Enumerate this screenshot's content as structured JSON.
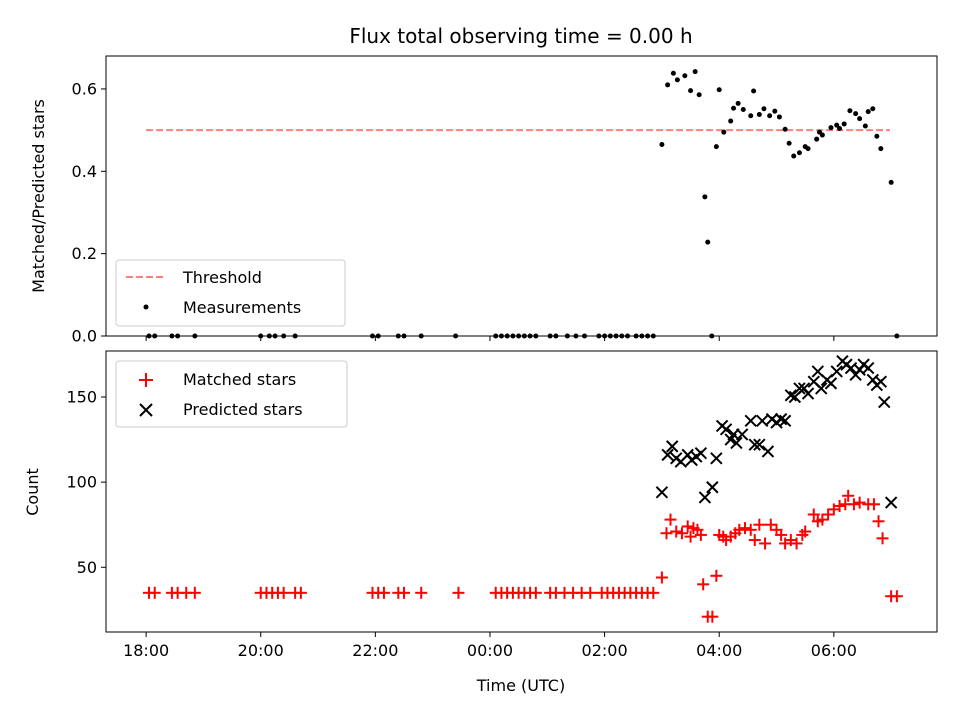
{
  "chart_data": [
    {
      "type": "scatter",
      "title": "Flux total observing time = 0.00 h",
      "xlabel": "",
      "ylabel": "Matched/Predicted stars",
      "xlim": [
        -6.7,
        7.8
      ],
      "ylim": [
        0.0,
        0.68
      ],
      "yticks": [
        0.0,
        0.2,
        0.4,
        0.6
      ],
      "ytick_labels": [
        "0.0",
        "0.2",
        "0.4",
        "0.6"
      ],
      "grid": false,
      "legend_position": "lower-left",
      "threshold": {
        "name": "Threshold",
        "y": 0.5,
        "x_range": [
          -6.0,
          6.98
        ],
        "color": "#ff7f7f"
      },
      "series": [
        {
          "name": "Measurements",
          "marker": "dot",
          "color": "#000000",
          "points": [
            [
              -5.95,
              0
            ],
            [
              -5.85,
              0
            ],
            [
              -5.55,
              0
            ],
            [
              -5.45,
              0
            ],
            [
              -5.15,
              0
            ],
            [
              -4.0,
              0
            ],
            [
              -3.85,
              0
            ],
            [
              -3.75,
              0
            ],
            [
              -3.6,
              0
            ],
            [
              -3.4,
              0
            ],
            [
              -2.05,
              0
            ],
            [
              -1.95,
              0
            ],
            [
              -1.6,
              0
            ],
            [
              -1.5,
              0
            ],
            [
              -1.2,
              0
            ],
            [
              -0.6,
              0
            ],
            [
              0.1,
              0
            ],
            [
              0.2,
              0
            ],
            [
              0.3,
              0
            ],
            [
              0.4,
              0
            ],
            [
              0.5,
              0
            ],
            [
              0.6,
              0
            ],
            [
              0.7,
              0
            ],
            [
              0.8,
              0
            ],
            [
              1.05,
              0
            ],
            [
              1.15,
              0
            ],
            [
              1.35,
              0
            ],
            [
              1.5,
              0
            ],
            [
              1.65,
              0
            ],
            [
              1.9,
              0
            ],
            [
              2.0,
              0
            ],
            [
              2.1,
              0
            ],
            [
              2.2,
              0
            ],
            [
              2.3,
              0
            ],
            [
              2.4,
              0
            ],
            [
              2.55,
              0
            ],
            [
              2.65,
              0
            ],
            [
              2.75,
              0
            ],
            [
              2.85,
              0
            ],
            [
              3.0,
              0.465
            ],
            [
              3.1,
              0.61
            ],
            [
              3.2,
              0.638
            ],
            [
              3.27,
              0.622
            ],
            [
              3.4,
              0.632
            ],
            [
              3.5,
              0.596
            ],
            [
              3.58,
              0.642
            ],
            [
              3.65,
              0.586
            ],
            [
              3.75,
              0.338
            ],
            [
              3.8,
              0.228
            ],
            [
              3.87,
              0.0
            ],
            [
              3.95,
              0.46
            ],
            [
              4.0,
              0.598
            ],
            [
              4.08,
              0.495
            ],
            [
              4.2,
              0.522
            ],
            [
              4.25,
              0.553
            ],
            [
              4.33,
              0.565
            ],
            [
              4.42,
              0.55
            ],
            [
              4.55,
              0.535
            ],
            [
              4.6,
              0.595
            ],
            [
              4.7,
              0.538
            ],
            [
              4.78,
              0.552
            ],
            [
              4.88,
              0.535
            ],
            [
              4.97,
              0.546
            ],
            [
              5.05,
              0.532
            ],
            [
              5.15,
              0.502
            ],
            [
              5.22,
              0.468
            ],
            [
              5.3,
              0.437
            ],
            [
              5.4,
              0.445
            ],
            [
              5.5,
              0.46
            ],
            [
              5.55,
              0.455
            ],
            [
              5.7,
              0.478
            ],
            [
              5.75,
              0.495
            ],
            [
              5.8,
              0.488
            ],
            [
              5.95,
              0.506
            ],
            [
              6.05,
              0.512
            ],
            [
              6.1,
              0.504
            ],
            [
              6.18,
              0.515
            ],
            [
              6.28,
              0.547
            ],
            [
              6.38,
              0.54
            ],
            [
              6.45,
              0.528
            ],
            [
              6.55,
              0.51
            ],
            [
              6.6,
              0.545
            ],
            [
              6.68,
              0.552
            ],
            [
              6.75,
              0.485
            ],
            [
              6.82,
              0.455
            ],
            [
              7.0,
              0.373
            ],
            [
              7.1,
              0.0
            ]
          ]
        }
      ]
    },
    {
      "type": "scatter",
      "title": "",
      "xlabel": "Time (UTC)",
      "ylabel": "Count",
      "xlim": [
        -6.7,
        7.8
      ],
      "ylim": [
        12,
        177
      ],
      "yticks": [
        50,
        100,
        150
      ],
      "ytick_labels": [
        "50",
        "100",
        "150"
      ],
      "xticks": [
        -6,
        -4,
        -2,
        0,
        2,
        4,
        6
      ],
      "xtick_labels": [
        "18:00",
        "20:00",
        "22:00",
        "00:00",
        "02:00",
        "04:00",
        "06:00"
      ],
      "grid": false,
      "legend_position": "upper-left",
      "series": [
        {
          "name": "Matched stars",
          "marker": "plus",
          "color": "#ff0000",
          "points": [
            [
              -5.95,
              35
            ],
            [
              -5.85,
              35
            ],
            [
              -5.55,
              35
            ],
            [
              -5.45,
              35
            ],
            [
              -5.3,
              35
            ],
            [
              -5.15,
              35
            ],
            [
              -4.0,
              35
            ],
            [
              -3.9,
              35
            ],
            [
              -3.8,
              35
            ],
            [
              -3.7,
              35
            ],
            [
              -3.6,
              35
            ],
            [
              -3.4,
              35
            ],
            [
              -3.3,
              35
            ],
            [
              -2.05,
              35
            ],
            [
              -1.95,
              35
            ],
            [
              -1.85,
              35
            ],
            [
              -1.6,
              35
            ],
            [
              -1.5,
              35
            ],
            [
              -1.2,
              35
            ],
            [
              -0.55,
              35
            ],
            [
              0.1,
              35
            ],
            [
              0.2,
              35
            ],
            [
              0.3,
              35
            ],
            [
              0.4,
              35
            ],
            [
              0.5,
              35
            ],
            [
              0.6,
              35
            ],
            [
              0.7,
              35
            ],
            [
              0.8,
              35
            ],
            [
              1.05,
              35
            ],
            [
              1.15,
              35
            ],
            [
              1.3,
              35
            ],
            [
              1.45,
              35
            ],
            [
              1.6,
              35
            ],
            [
              1.75,
              35
            ],
            [
              1.95,
              35
            ],
            [
              2.05,
              35
            ],
            [
              2.15,
              35
            ],
            [
              2.25,
              35
            ],
            [
              2.35,
              35
            ],
            [
              2.45,
              35
            ],
            [
              2.55,
              35
            ],
            [
              2.65,
              35
            ],
            [
              2.75,
              35
            ],
            [
              2.85,
              35
            ],
            [
              3.0,
              44
            ],
            [
              3.08,
              70
            ],
            [
              3.15,
              78
            ],
            [
              3.25,
              71
            ],
            [
              3.35,
              70
            ],
            [
              3.45,
              74
            ],
            [
              3.5,
              68
            ],
            [
              3.55,
              73
            ],
            [
              3.62,
              72
            ],
            [
              3.68,
              69
            ],
            [
              3.72,
              40
            ],
            [
              3.8,
              21
            ],
            [
              3.88,
              21
            ],
            [
              3.95,
              45
            ],
            [
              4.0,
              69
            ],
            [
              4.07,
              68
            ],
            [
              4.12,
              66
            ],
            [
              4.2,
              68
            ],
            [
              4.28,
              70
            ],
            [
              4.35,
              72
            ],
            [
              4.45,
              73
            ],
            [
              4.55,
              72
            ],
            [
              4.62,
              66
            ],
            [
              4.7,
              75
            ],
            [
              4.8,
              64
            ],
            [
              4.9,
              75
            ],
            [
              5.0,
              72
            ],
            [
              5.08,
              69
            ],
            [
              5.15,
              64
            ],
            [
              5.25,
              66
            ],
            [
              5.35,
              64
            ],
            [
              5.45,
              69
            ],
            [
              5.5,
              71
            ],
            [
              5.65,
              81
            ],
            [
              5.72,
              77
            ],
            [
              5.8,
              78
            ],
            [
              5.9,
              81
            ],
            [
              6.0,
              84
            ],
            [
              6.1,
              86
            ],
            [
              6.2,
              87
            ],
            [
              6.25,
              92
            ],
            [
              6.35,
              87
            ],
            [
              6.45,
              88
            ],
            [
              6.6,
              87
            ],
            [
              6.7,
              87
            ],
            [
              6.78,
              77
            ],
            [
              6.85,
              67
            ],
            [
              7.0,
              33
            ],
            [
              7.1,
              33
            ]
          ]
        },
        {
          "name": "Predicted stars",
          "marker": "x",
          "color": "#000000",
          "points": [
            [
              3.0,
              94
            ],
            [
              3.1,
              116
            ],
            [
              3.18,
              121
            ],
            [
              3.25,
              114
            ],
            [
              3.33,
              112
            ],
            [
              3.45,
              116
            ],
            [
              3.52,
              113
            ],
            [
              3.6,
              115
            ],
            [
              3.68,
              117
            ],
            [
              3.75,
              91
            ],
            [
              3.88,
              97
            ],
            [
              3.95,
              114
            ],
            [
              4.05,
              133
            ],
            [
              4.12,
              131
            ],
            [
              4.2,
              125
            ],
            [
              4.25,
              128
            ],
            [
              4.3,
              123
            ],
            [
              4.4,
              128
            ],
            [
              4.55,
              136
            ],
            [
              4.62,
              122
            ],
            [
              4.7,
              122
            ],
            [
              4.75,
              136
            ],
            [
              4.85,
              118
            ],
            [
              4.92,
              137
            ],
            [
              5.0,
              135
            ],
            [
              5.08,
              137
            ],
            [
              5.15,
              136
            ],
            [
              5.25,
              151
            ],
            [
              5.32,
              150
            ],
            [
              5.4,
              155
            ],
            [
              5.48,
              155
            ],
            [
              5.55,
              152
            ],
            [
              5.65,
              159
            ],
            [
              5.72,
              165
            ],
            [
              5.78,
              155
            ],
            [
              5.88,
              160
            ],
            [
              5.95,
              158
            ],
            [
              6.05,
              165
            ],
            [
              6.15,
              171
            ],
            [
              6.22,
              169
            ],
            [
              6.3,
              167
            ],
            [
              6.38,
              163
            ],
            [
              6.45,
              166
            ],
            [
              6.52,
              169
            ],
            [
              6.6,
              167
            ],
            [
              6.68,
              160
            ],
            [
              6.75,
              157
            ],
            [
              6.82,
              159
            ],
            [
              6.88,
              147
            ],
            [
              7.0,
              88
            ]
          ]
        }
      ]
    }
  ]
}
